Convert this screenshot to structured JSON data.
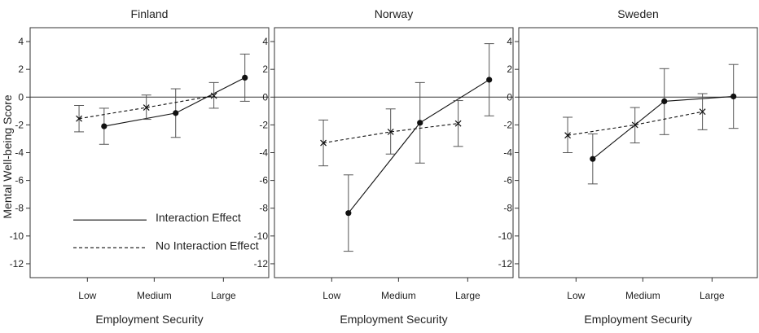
{
  "chart_data": {
    "type": "line",
    "ylabel": "Mental Well-being Score",
    "xlabel": "Employment Security",
    "categories": [
      "Low",
      "Medium",
      "Large"
    ],
    "yticks": [
      4,
      2,
      0,
      -2,
      -4,
      -6,
      -8,
      -10,
      -12
    ],
    "ylim": [
      -13,
      5
    ],
    "legend": {
      "position": "lower-left of first panel",
      "entries": [
        {
          "label": "Interaction Effect",
          "style": "solid",
          "marker": "dot"
        },
        {
          "label": "No Interaction Effect",
          "style": "dashed",
          "marker": "x"
        }
      ]
    },
    "reference_line": 0,
    "panels": [
      {
        "title": "Finland",
        "series": [
          {
            "name": "Interaction Effect",
            "values": [
              -2.1,
              -1.15,
              1.4
            ],
            "lower": [
              -3.4,
              -2.9,
              -0.3
            ],
            "upper": [
              -0.8,
              0.6,
              3.1
            ]
          },
          {
            "name": "No Interaction Effect",
            "values": [
              -1.55,
              -0.75,
              0.1
            ],
            "lower": [
              -2.5,
              -1.6,
              -0.8
            ],
            "upper": [
              -0.6,
              0.15,
              1.05
            ]
          }
        ]
      },
      {
        "title": "Norway",
        "series": [
          {
            "name": "Interaction Effect",
            "values": [
              -8.35,
              -1.85,
              1.25
            ],
            "lower": [
              -11.1,
              -4.75,
              -1.35
            ],
            "upper": [
              -5.6,
              1.05,
              3.85
            ]
          },
          {
            "name": "No Interaction Effect",
            "values": [
              -3.3,
              -2.5,
              -1.9
            ],
            "lower": [
              -4.95,
              -4.1,
              -3.55
            ],
            "upper": [
              -1.65,
              -0.85,
              -0.25
            ]
          }
        ]
      },
      {
        "title": "Sweden",
        "series": [
          {
            "name": "Interaction Effect",
            "values": [
              -4.45,
              -0.3,
              0.05
            ],
            "lower": [
              -6.25,
              -2.7,
              -2.25
            ],
            "upper": [
              -2.65,
              2.05,
              2.35
            ]
          },
          {
            "name": "No Interaction Effect",
            "values": [
              -2.75,
              -2.0,
              -1.05
            ],
            "lower": [
              -4.0,
              -3.3,
              -2.35
            ],
            "upper": [
              -1.45,
              -0.75,
              0.25
            ]
          }
        ]
      }
    ]
  }
}
